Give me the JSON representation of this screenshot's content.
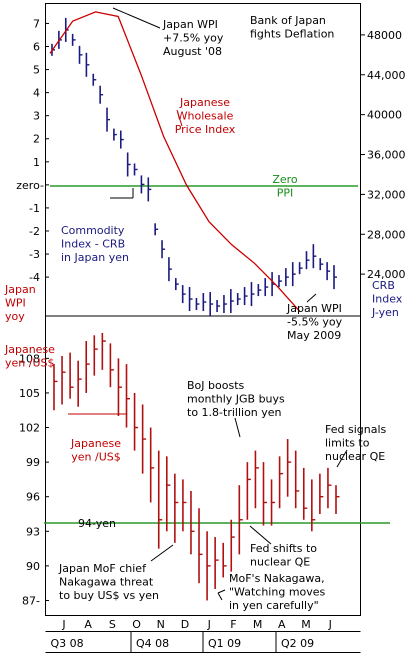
{
  "colors": {
    "ppi_line": "#cc0000",
    "crb_bars": "#1a1a80",
    "yen_bars": "#b01010",
    "zero_line": "#2a9a2a",
    "annotation_red": "#c00000",
    "annotation_navy": "#1a1a80",
    "annotation_green": "#1a8c1a"
  },
  "labels": {
    "title": "Bank of Japan\nfights Deflation",
    "ppi_series": "Japanese\nWholesale\nPrice Index",
    "ppi_axis": "Japan\nWPI\nyoy",
    "crb_series": "Commodity\nIndex - CRB\nin Japan yen",
    "crb_axis": "CRB\nIndex\nJ-yen",
    "zero_ppi": "Zero\nPPI",
    "zero_tick": "zero-",
    "yen_series": "Japanese\nyen /US$",
    "yen_axis": "Japanese\nyen /US$",
    "yen_94": "94-yen",
    "note_peak": "Japan WPI\n+7.5% yoy\nAugust '08",
    "note_trough": "Japan WPI\n-5.5% yoy\nMay 2009",
    "note_boj": "BoJ boosts\nmonthly JGB buys\nto 1.8-trillion yen",
    "note_fed_limits": "Fed signals\nlimits to\nnuclear QE",
    "note_fed_shift": "Fed shifts to\nnuclear QE",
    "note_mof_threat": "Japan MoF chief\nNakagawa threat\nto buy US$ vs yen",
    "note_mof_watch": "MoF's Nakagawa,\n\"Watching moves\nin yen carefully\""
  },
  "chart_data": [
    {
      "type": "line",
      "title": "Bank of Japan fights Deflation",
      "series": [
        {
          "name": "Japanese Wholesale Price Index",
          "x": [
            "Jun-08",
            "Jul-08",
            "Aug-08",
            "Sep-08",
            "Oct-08",
            "Nov-08",
            "Dec-08",
            "Jan-09",
            "Feb-09",
            "Mar-09",
            "Apr-09",
            "May-09"
          ],
          "values": [
            5.7,
            7.1,
            7.5,
            7.3,
            4.8,
            2.1,
            0.0,
            -1.6,
            -2.6,
            -3.4,
            -4.4,
            -5.5
          ]
        }
      ],
      "ylabel": "Japan WPI yoy",
      "yticks": [
        "7",
        "6",
        "5",
        "4",
        "3",
        "2",
        "1",
        "zero-",
        "-1",
        "-2",
        "-3",
        "-4"
      ],
      "ylim": [
        -5.6,
        7.8
      ]
    },
    {
      "type": "bar",
      "title": "Commodity Index - CRB in Japan yen",
      "weekly_close": [
        46500,
        47500,
        48500,
        47500,
        46000,
        45000,
        43500,
        42000,
        39500,
        38000,
        37500,
        35000,
        34500,
        33000,
        32500,
        28500,
        26500,
        24500,
        23000,
        22000,
        21500,
        21000,
        21200,
        21000,
        20800,
        21000,
        21300,
        21500,
        21800,
        22000,
        22400,
        22700,
        23000,
        23300,
        23700,
        24000,
        24600,
        25400,
        25800,
        25000,
        24300,
        23700
      ],
      "ylabel": "CRB Index J-yen",
      "yticks": [
        "48000",
        "44,000",
        "40000",
        "36,000",
        "32,000",
        "28,000",
        "24,000"
      ],
      "ylim": [
        20000,
        51000
      ]
    },
    {
      "type": "bar",
      "title": "Japanese yen /US$",
      "x_months": [
        "J",
        "A",
        "S",
        "O",
        "N",
        "D",
        "J",
        "F",
        "M",
        "A",
        "M",
        "J"
      ],
      "x_quarters": [
        "Q3 08",
        "Q4 08",
        "Q1 09",
        "Q2 09"
      ],
      "weekly_high_low_close": [
        [
          107.5,
          103.5,
          106.0
        ],
        [
          108.2,
          104.0,
          106.8
        ],
        [
          108.5,
          104.5,
          105.5
        ],
        [
          107.8,
          103.8,
          106.2
        ],
        [
          109.5,
          105.0,
          107.5
        ],
        [
          110.0,
          106.5,
          108.8
        ],
        [
          110.2,
          107.0,
          109.5
        ],
        [
          109.3,
          105.5,
          107.0
        ],
        [
          108.0,
          103.0,
          105.5
        ],
        [
          107.5,
          102.0,
          104.5
        ],
        [
          105.0,
          100.0,
          102.0
        ],
        [
          104.0,
          98.0,
          101.0
        ],
        [
          102.0,
          95.5,
          98.5
        ],
        [
          100.0,
          91.5,
          94.0
        ],
        [
          99.5,
          93.0,
          97.0
        ],
        [
          98.0,
          92.0,
          95.5
        ],
        [
          97.5,
          93.0,
          95.5
        ],
        [
          96.5,
          91.0,
          93.0
        ],
        [
          95.0,
          88.5,
          91.0
        ],
        [
          93.0,
          87.0,
          90.0
        ],
        [
          92.5,
          88.0,
          90.5
        ],
        [
          92.0,
          89.0,
          90.0
        ],
        [
          94.0,
          89.5,
          92.5
        ],
        [
          97.0,
          91.0,
          94.0
        ],
        [
          99.0,
          94.0,
          97.5
        ],
        [
          100.0,
          95.0,
          98.5
        ],
        [
          99.0,
          93.5,
          95.5
        ],
        [
          97.5,
          93.5,
          95.5
        ],
        [
          99.5,
          95.0,
          98.0
        ],
        [
          101.0,
          96.0,
          99.0
        ],
        [
          100.0,
          95.0,
          96.5
        ],
        [
          98.5,
          94.0,
          95.0
        ],
        [
          97.5,
          93.0,
          94.0
        ],
        [
          98.0,
          94.5,
          96.0
        ],
        [
          98.5,
          95.0,
          97.0
        ],
        [
          97.0,
          94.5,
          96.0
        ]
      ],
      "ylabel": "Japanese yen /US$",
      "yticks": [
        "108",
        "105",
        "102",
        "99",
        "96",
        "93",
        "90",
        "87"
      ],
      "ylim": [
        86,
        111.5
      ],
      "reference_line": {
        "label": "94-yen",
        "value": 94
      }
    }
  ]
}
